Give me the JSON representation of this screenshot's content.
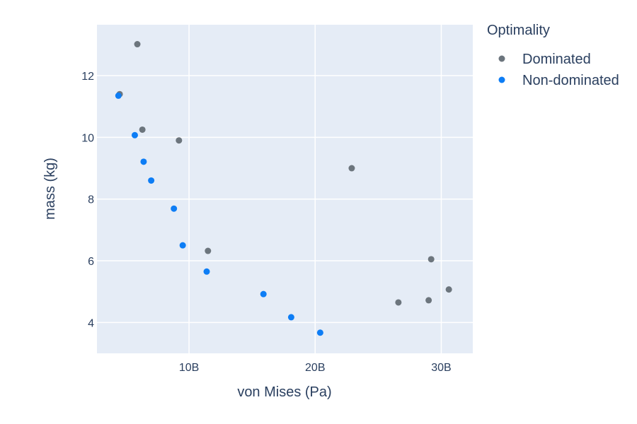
{
  "chart_data": {
    "type": "scatter",
    "title": "",
    "xlabel": "von Mises (Pa)",
    "ylabel": "mass (kg)",
    "xlim": [
      2700000000.0,
      32500000000.0
    ],
    "ylim": [
      3.0,
      13.65
    ],
    "x_ticks": [
      {
        "value": 10000000000.0,
        "label": "10B"
      },
      {
        "value": 20000000000.0,
        "label": "20B"
      },
      {
        "value": 30000000000.0,
        "label": "30B"
      }
    ],
    "y_ticks": [
      {
        "value": 4,
        "label": "4"
      },
      {
        "value": 6,
        "label": "6"
      },
      {
        "value": 8,
        "label": "8"
      },
      {
        "value": 10,
        "label": "10"
      },
      {
        "value": 12,
        "label": "12"
      }
    ],
    "grid": true,
    "plot_bg": "#e5ecf6",
    "grid_color": "#ffffff",
    "legend": {
      "title": "Optimality",
      "placement": "right"
    },
    "series": [
      {
        "name": "Dominated",
        "color": "#6c757d",
        "points": [
          {
            "x": 5900000000.0,
            "y": 13.02
          },
          {
            "x": 4500000000.0,
            "y": 11.4
          },
          {
            "x": 6300000000.0,
            "y": 10.25
          },
          {
            "x": 9200000000.0,
            "y": 9.9
          },
          {
            "x": 11500000000.0,
            "y": 6.32
          },
          {
            "x": 22900000000.0,
            "y": 9.0
          },
          {
            "x": 29200000000.0,
            "y": 6.05
          },
          {
            "x": 30600000000.0,
            "y": 5.07
          },
          {
            "x": 26600000000.0,
            "y": 4.65
          },
          {
            "x": 29000000000.0,
            "y": 4.72
          }
        ]
      },
      {
        "name": "Non-dominated",
        "color": "#0d7df5",
        "points": [
          {
            "x": 4400000000.0,
            "y": 11.35
          },
          {
            "x": 5700000000.0,
            "y": 10.07
          },
          {
            "x": 6400000000.0,
            "y": 9.21
          },
          {
            "x": 7000000000.0,
            "y": 8.6
          },
          {
            "x": 8800000000.0,
            "y": 7.69
          },
          {
            "x": 9500000000.0,
            "y": 6.5
          },
          {
            "x": 11400000000.0,
            "y": 5.65
          },
          {
            "x": 15900000000.0,
            "y": 4.92
          },
          {
            "x": 18100000000.0,
            "y": 4.17
          },
          {
            "x": 20400000000.0,
            "y": 3.67
          }
        ]
      }
    ]
  }
}
